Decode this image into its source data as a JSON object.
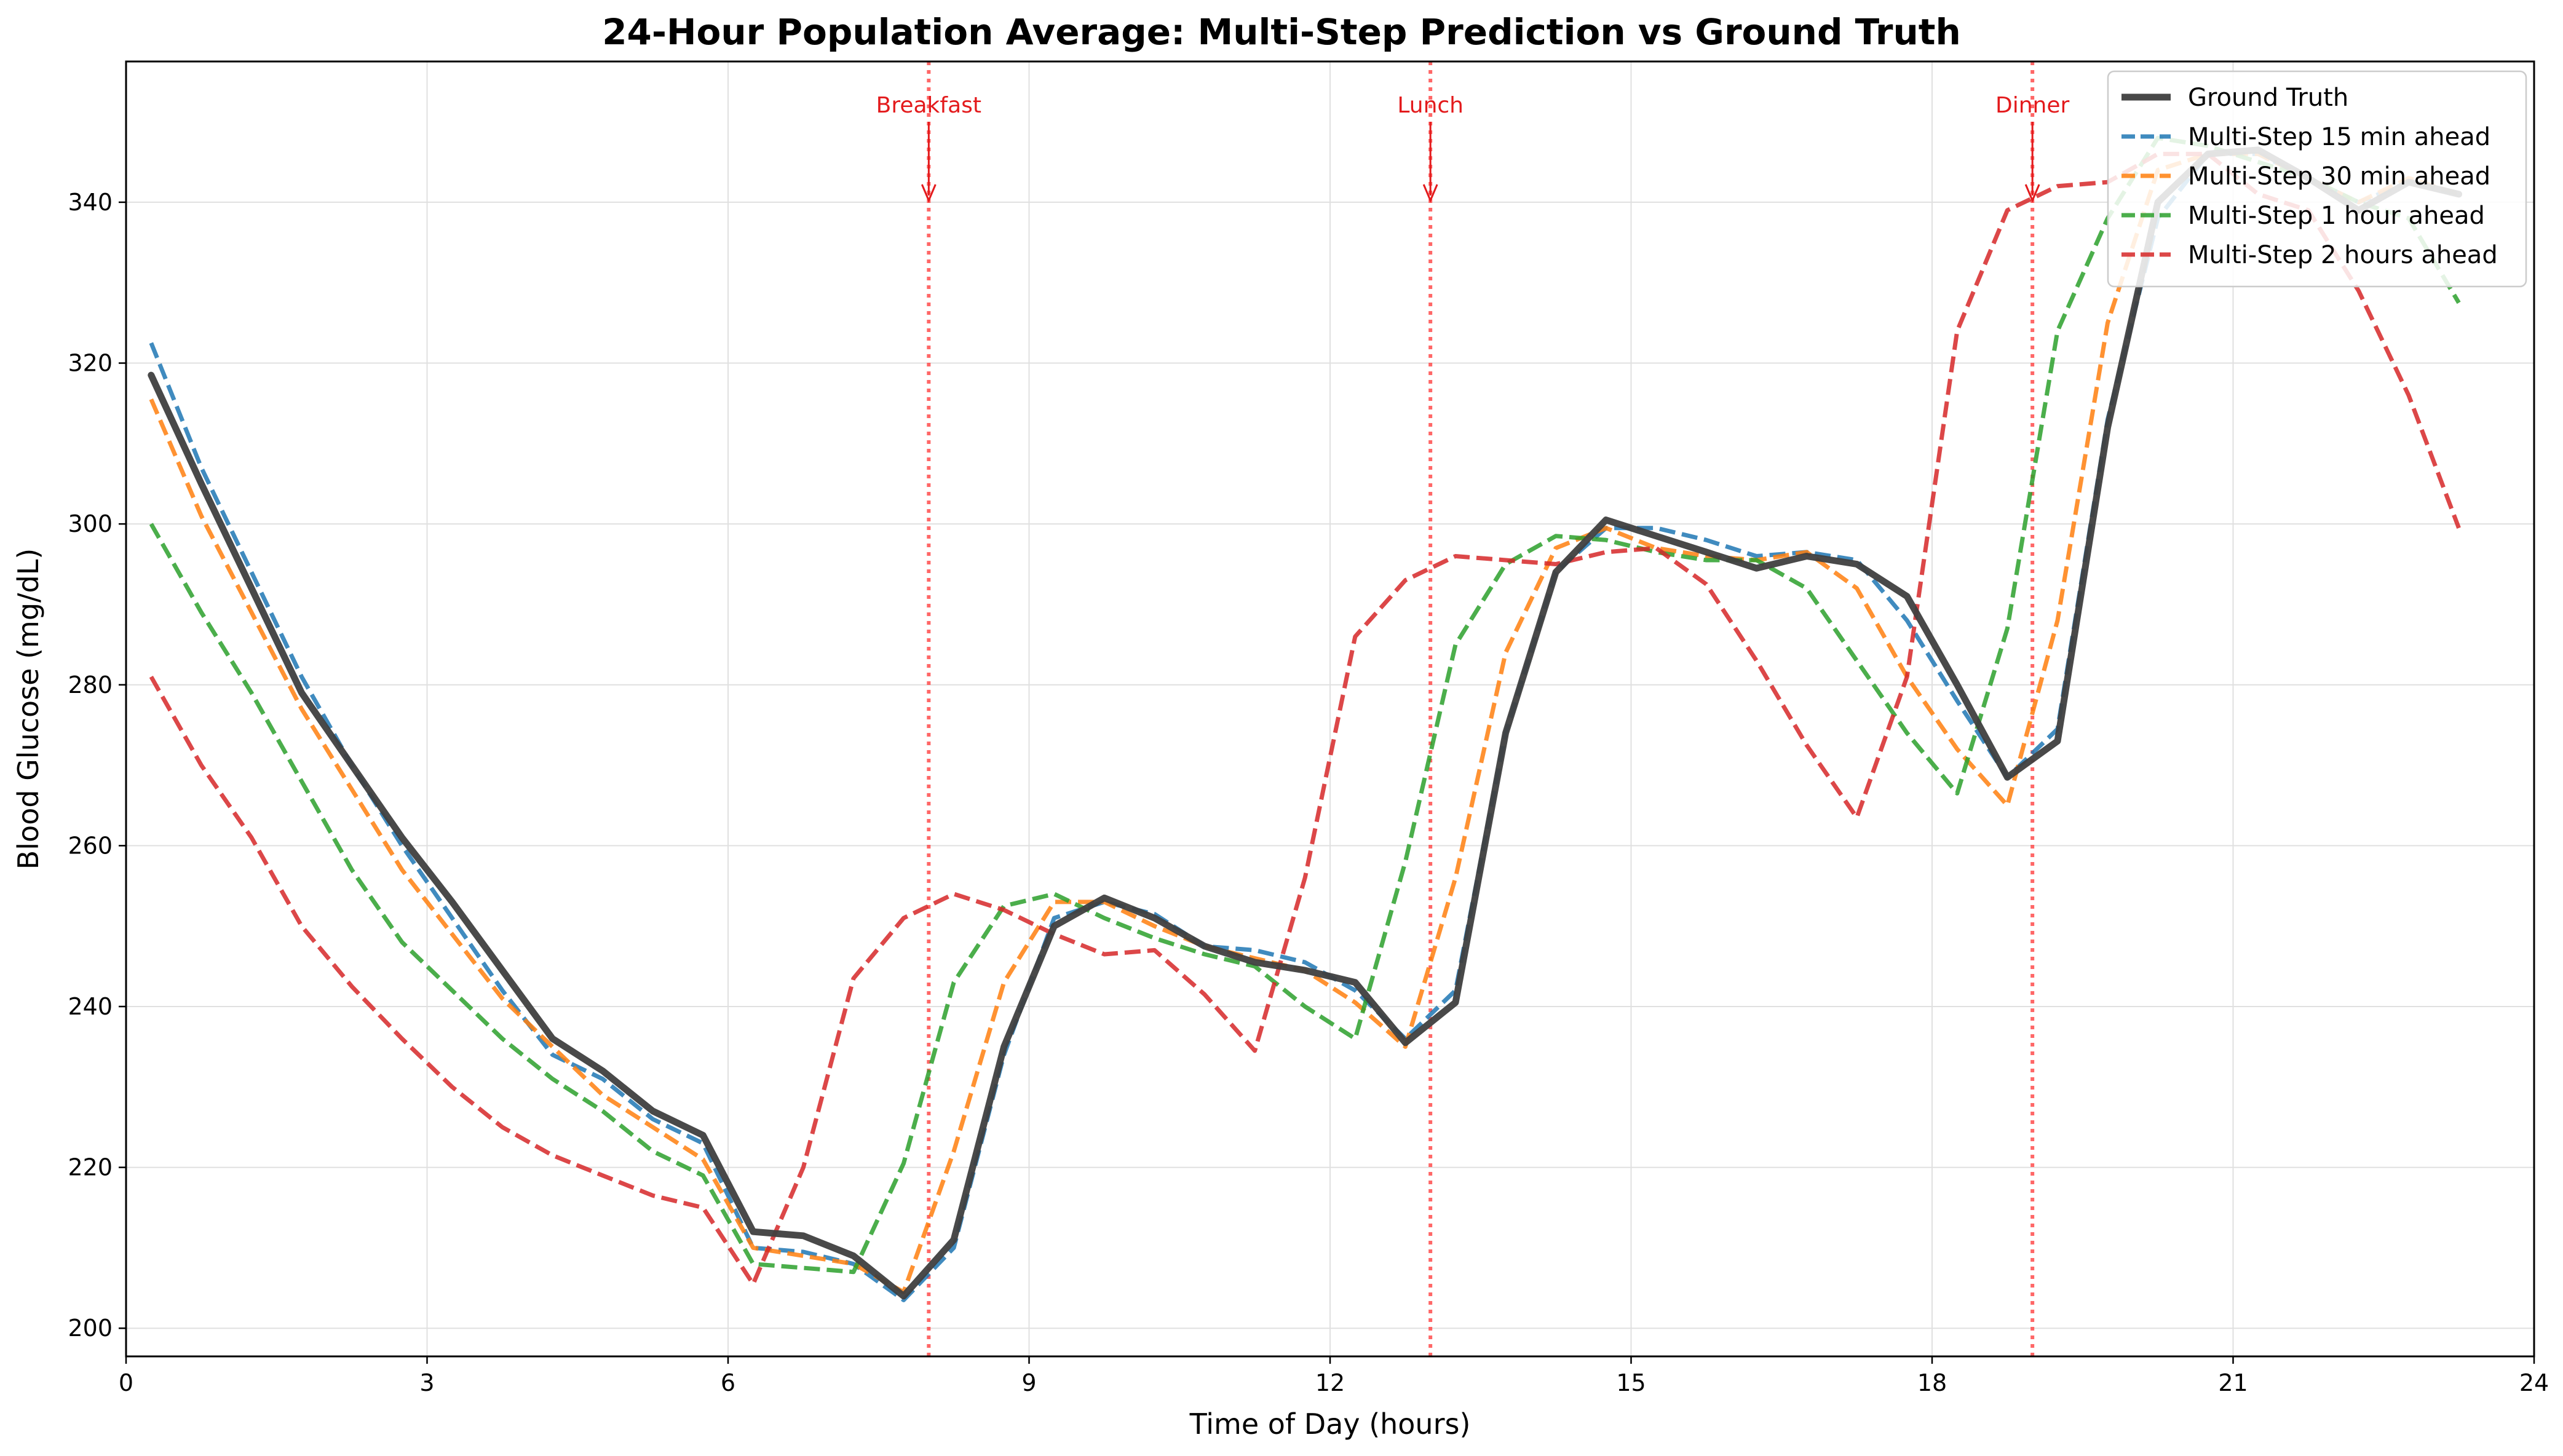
{
  "chart_data": {
    "type": "line",
    "title": "24-Hour Population Average: Multi-Step Prediction vs Ground Truth",
    "xlabel": "Time of Day (hours)",
    "ylabel": "Blood Glucose (mg/dL)",
    "xlim": [
      0,
      24
    ],
    "ylim": [
      196.5,
      357.5
    ],
    "xticks": [
      0,
      3,
      6,
      9,
      12,
      15,
      18,
      21,
      24
    ],
    "yticks": [
      200,
      220,
      240,
      260,
      280,
      300,
      320,
      340
    ],
    "grid": true,
    "legend_position": "top-right",
    "x": [
      0.25,
      0.75,
      1.25,
      1.75,
      2.25,
      2.75,
      3.25,
      3.75,
      4.25,
      4.75,
      5.25,
      5.75,
      6.25,
      6.75,
      7.25,
      7.75,
      8.25,
      8.75,
      9.25,
      9.75,
      10.25,
      10.75,
      11.25,
      11.75,
      12.25,
      12.75,
      13.25,
      13.75,
      14.25,
      14.75,
      15.25,
      15.75,
      16.25,
      16.75,
      17.25,
      17.75,
      18.25,
      18.75,
      19.25,
      19.75,
      20.25,
      20.75,
      21.25,
      21.75,
      22.25,
      22.75,
      23.25
    ],
    "series": [
      {
        "name": "Ground Truth",
        "color": "#3f3f3f",
        "style": "solid",
        "values": [
          318.5,
          305,
          292,
          279,
          270,
          261,
          253,
          244.5,
          236,
          232,
          227,
          224,
          212,
          211.5,
          209,
          204,
          211,
          235,
          250,
          253.5,
          251,
          247.5,
          245.5,
          244.5,
          243,
          235.5,
          240.5,
          274,
          294,
          300.5,
          298.5,
          296.5,
          294.5,
          296,
          295,
          291,
          280,
          268.5,
          273,
          312,
          340,
          346,
          346.5,
          343,
          339,
          342.5,
          341
        ]
      },
      {
        "name": "Multi-Step 15 min ahead",
        "color": "#1f77b4",
        "style": "dashed",
        "values": [
          322.5,
          307,
          294,
          281,
          270,
          260,
          251,
          242,
          234,
          231,
          226,
          223,
          210,
          209.5,
          208,
          203.5,
          210,
          234,
          251,
          253,
          251.5,
          247.5,
          247,
          245.5,
          242,
          236,
          242,
          274,
          294,
          299.5,
          299.5,
          298,
          296,
          296.5,
          295.5,
          288,
          278,
          268.5,
          274.5,
          313,
          338,
          346,
          346,
          343,
          340,
          342.5,
          341
        ]
      },
      {
        "name": "Multi-Step 30 min ahead",
        "color": "#ff7f0e",
        "style": "dashed",
        "values": [
          315.5,
          301,
          289,
          277,
          267,
          257,
          249,
          241,
          235,
          229,
          225,
          221,
          210,
          209,
          208,
          204.5,
          222,
          243,
          253,
          253,
          250,
          247.5,
          246,
          244.5,
          240.5,
          235,
          256,
          284,
          297,
          299.5,
          297,
          296,
          295.5,
          296.5,
          292,
          281,
          272,
          265,
          288,
          325,
          344,
          346,
          346,
          343,
          340,
          343,
          341
        ]
      },
      {
        "name": "Multi-Step 1 hour ahead",
        "color": "#2ca02c",
        "style": "dashed",
        "values": [
          300,
          289,
          279,
          268,
          257,
          248,
          242,
          236,
          231,
          227,
          222,
          219,
          208,
          207.5,
          207,
          220.5,
          243,
          252.5,
          254,
          251,
          248.5,
          246.5,
          245,
          240,
          236,
          258,
          285,
          295,
          298.5,
          298,
          296.5,
          295.5,
          295.5,
          292,
          283,
          274,
          266.5,
          287,
          324,
          338,
          348,
          347,
          345,
          343,
          340,
          338,
          327.5
        ]
      },
      {
        "name": "Multi-Step 2 hours ahead",
        "color": "#d62728",
        "style": "dashed",
        "values": [
          281,
          270,
          261,
          250,
          242.5,
          236,
          230,
          225,
          221.5,
          219,
          216.5,
          215,
          205.5,
          220,
          243.5,
          251,
          254,
          252,
          249,
          246.5,
          247,
          241.5,
          234.5,
          256,
          286,
          293,
          296,
          295.5,
          295,
          296.5,
          297,
          292.5,
          283,
          272.5,
          263.5,
          281,
          324,
          339,
          342,
          342.5,
          346,
          346,
          341,
          339,
          329,
          316,
          299.5
        ]
      }
    ],
    "annotations": [
      {
        "label": "Breakfast",
        "x": 8
      },
      {
        "label": "Lunch",
        "x": 13
      },
      {
        "label": "Dinner",
        "x": 19
      }
    ]
  }
}
